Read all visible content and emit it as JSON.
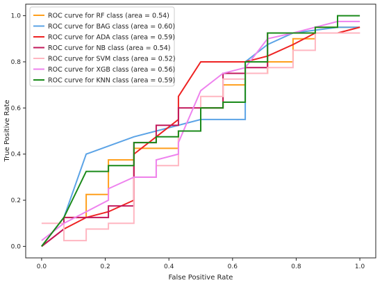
{
  "chart_data": {
    "type": "line",
    "title": "",
    "xlabel": "False Positive Rate",
    "ylabel": "True Positive Rate",
    "xlim": [
      -0.05,
      1.05
    ],
    "ylim": [
      -0.05,
      1.05
    ],
    "xticks": [
      0.0,
      0.2,
      0.4,
      0.6,
      0.8,
      1.0
    ],
    "yticks": [
      0.0,
      0.2,
      0.4,
      0.6,
      0.8,
      1.0
    ],
    "xtick_labels": [
      "0.0",
      "0.2",
      "0.4",
      "0.6",
      "0.8",
      "1.0"
    ],
    "ytick_labels": [
      "0.0",
      "0.2",
      "0.4",
      "0.6",
      "0.8",
      "1.0"
    ],
    "grid": false,
    "legend_position": "top-left",
    "series": [
      {
        "name": "ROC curve for RF class (area = 0.54)",
        "color": "#ff9f1c",
        "x": [
          0,
          0.07,
          0.14,
          0.14,
          0.21,
          0.21,
          0.29,
          0.29,
          0.36,
          0.43,
          0.43,
          0.5,
          0.5,
          0.57,
          0.57,
          0.64,
          0.64,
          0.71,
          0.71,
          0.79,
          0.79,
          0.86,
          0.86,
          0.93,
          0.93,
          1.0
        ],
        "y": [
          0,
          0.125,
          0.125,
          0.225,
          0.225,
          0.375,
          0.375,
          0.425,
          0.425,
          0.425,
          0.5,
          0.5,
          0.6,
          0.6,
          0.7,
          0.7,
          0.75,
          0.75,
          0.8,
          0.8,
          0.9,
          0.9,
          0.95,
          0.95,
          0.95,
          0.95
        ]
      },
      {
        "name": "ROC curve for BAG class (area = 0.60)",
        "color": "#5ba3e6",
        "x": [
          0,
          0.07,
          0.14,
          0.29,
          0.5,
          0.64,
          0.64,
          0.71,
          0.79,
          0.93,
          1.0
        ],
        "y": [
          0,
          0.125,
          0.4,
          0.475,
          0.55,
          0.55,
          0.8,
          0.875,
          0.925,
          0.95,
          0.95
        ]
      },
      {
        "name": "ROC curve for ADA class (area = 0.59)",
        "color": "#ee2222",
        "x": [
          0,
          0.07,
          0.14,
          0.21,
          0.29,
          0.29,
          0.36,
          0.43,
          0.43,
          0.5,
          0.64,
          0.71,
          0.79,
          0.86,
          0.93,
          1.0
        ],
        "y": [
          0,
          0.075,
          0.125,
          0.15,
          0.2,
          0.4,
          0.475,
          0.55,
          0.65,
          0.8,
          0.8,
          0.825,
          0.875,
          0.925,
          0.925,
          0.95
        ]
      },
      {
        "name": "ROC curve for NB class (area = 0.54)",
        "color": "#c2185b",
        "x": [
          0,
          0.07,
          0.07,
          0.21,
          0.21,
          0.29,
          0.29,
          0.36,
          0.36,
          0.43,
          0.43,
          0.57,
          0.57,
          0.64,
          0.64,
          0.71,
          0.71,
          1.0
        ],
        "y": [
          0,
          0.075,
          0.125,
          0.125,
          0.175,
          0.175,
          0.45,
          0.45,
          0.525,
          0.525,
          0.6,
          0.6,
          0.75,
          0.75,
          0.775,
          0.775,
          0.925,
          0.925
        ]
      },
      {
        "name": "ROC curve for SVM class (area = 0.52)",
        "color": "#ffb6c1",
        "x": [
          0,
          0.07,
          0.07,
          0.14,
          0.14,
          0.21,
          0.21,
          0.29,
          0.29,
          0.36,
          0.36,
          0.43,
          0.43,
          0.5,
          0.5,
          0.57,
          0.57,
          0.64,
          0.64,
          0.71,
          0.71,
          0.79,
          0.79,
          0.86,
          0.86,
          1.0
        ],
        "y": [
          0.1,
          0.1,
          0.025,
          0.025,
          0.075,
          0.075,
          0.1,
          0.1,
          0.3,
          0.3,
          0.35,
          0.35,
          0.5,
          0.5,
          0.65,
          0.65,
          0.725,
          0.725,
          0.75,
          0.75,
          0.775,
          0.775,
          0.85,
          0.85,
          0.925,
          0.925
        ]
      },
      {
        "name": "ROC curve for XGB class (area = 0.56)",
        "color": "#ee82ee",
        "x": [
          0,
          0.07,
          0.14,
          0.21,
          0.21,
          0.29,
          0.36,
          0.36,
          0.43,
          0.43,
          0.5,
          0.57,
          0.64,
          0.71,
          0.79,
          0.86,
          0.93,
          1.0
        ],
        "y": [
          0.025,
          0.1,
          0.15,
          0.2,
          0.25,
          0.3,
          0.3,
          0.375,
          0.4,
          0.45,
          0.675,
          0.75,
          0.775,
          0.9,
          0.925,
          0.95,
          0.975,
          0.975
        ]
      },
      {
        "name": "ROC curve for KNN class (area = 0.59)",
        "color": "#1a8a1a",
        "x": [
          0,
          0.07,
          0.14,
          0.21,
          0.21,
          0.29,
          0.29,
          0.36,
          0.36,
          0.43,
          0.43,
          0.5,
          0.5,
          0.57,
          0.57,
          0.64,
          0.64,
          0.71,
          0.71,
          0.86,
          0.86,
          0.93,
          0.93,
          1.0
        ],
        "y": [
          0,
          0.125,
          0.325,
          0.325,
          0.35,
          0.35,
          0.45,
          0.45,
          0.475,
          0.475,
          0.5,
          0.5,
          0.6,
          0.6,
          0.625,
          0.625,
          0.8,
          0.8,
          0.925,
          0.925,
          0.95,
          0.95,
          1.0,
          1.0
        ]
      }
    ]
  }
}
